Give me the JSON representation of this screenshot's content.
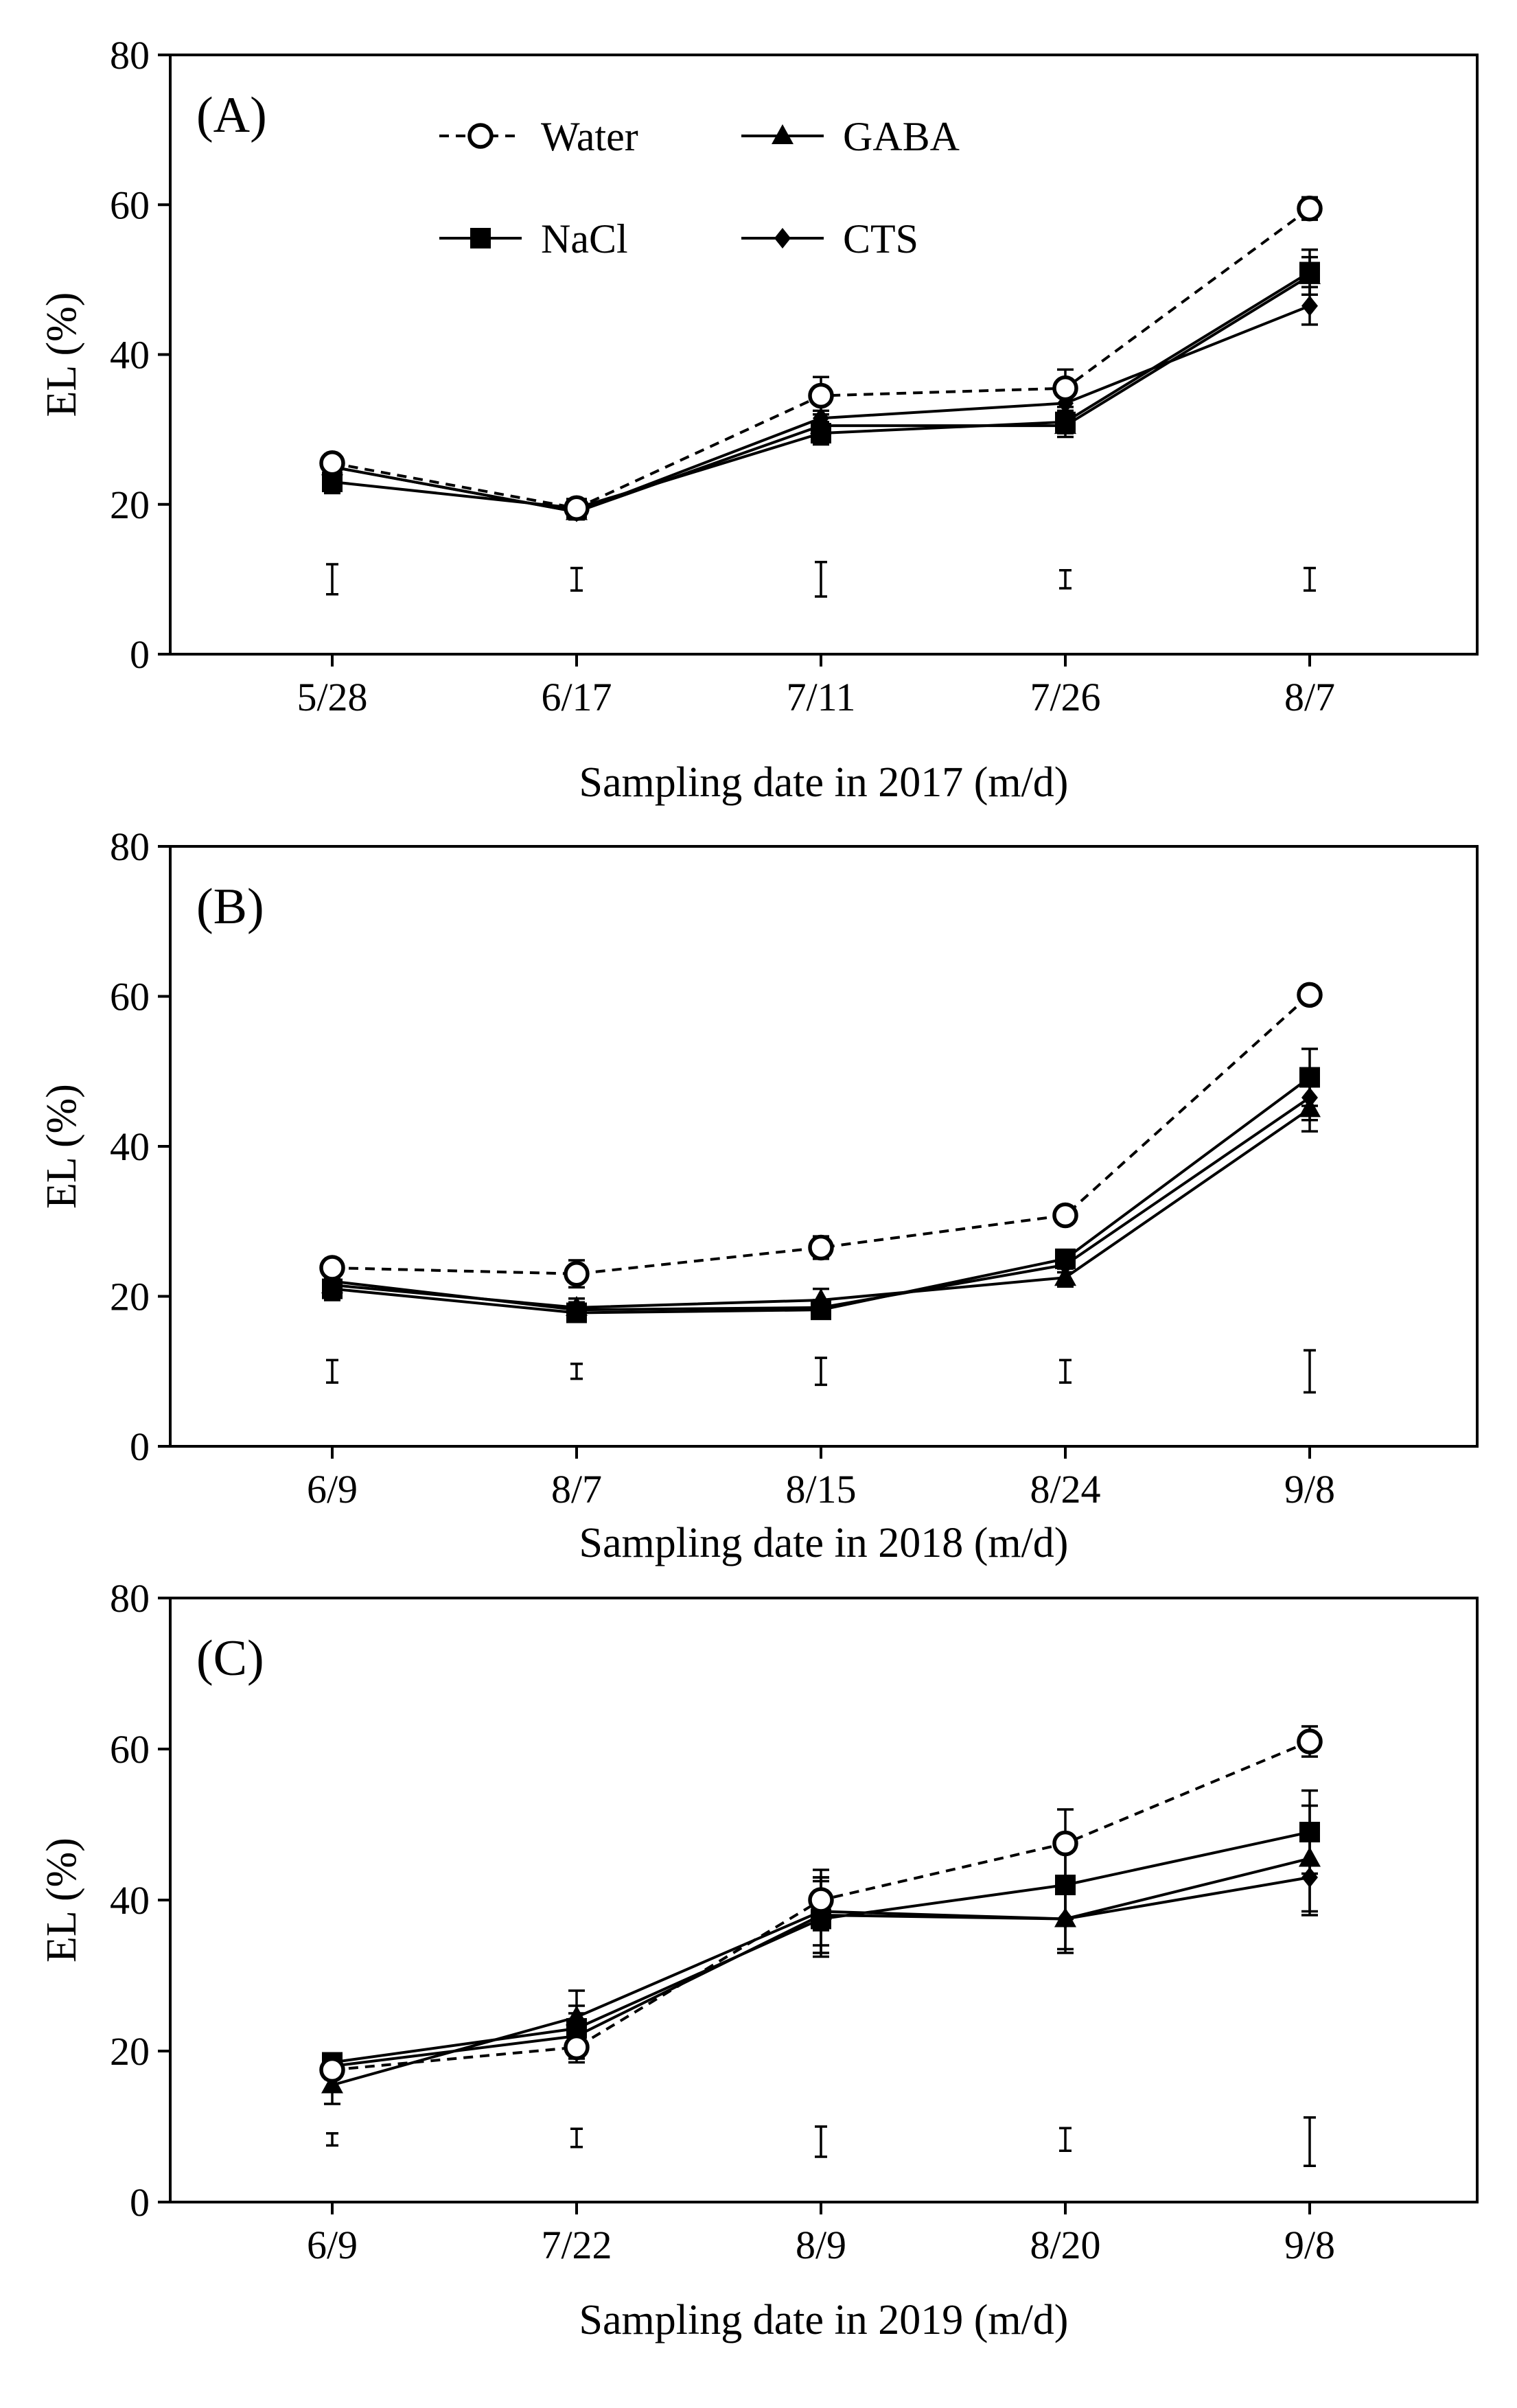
{
  "legend": [
    {
      "name": "Water",
      "marker": "open-circle",
      "dashed": true
    },
    {
      "name": "GABA",
      "marker": "triangle",
      "dashed": false
    },
    {
      "name": "NaCl",
      "marker": "square",
      "dashed": false
    },
    {
      "name": "CTS",
      "marker": "diamond",
      "dashed": false
    }
  ],
  "chart_data": [
    {
      "type": "line",
      "panel_label": "(A)",
      "xlabel": "Sampling date in 2017 (m/d)",
      "ylabel": "EL (%)",
      "ylim": [
        0,
        80
      ],
      "yticks": [
        "0",
        "20",
        "40",
        "60",
        "80"
      ],
      "categories": [
        "5/28",
        "6/17",
        "7/11",
        "7/26",
        "8/7"
      ],
      "series": [
        {
          "name": "Water",
          "values": [
            25.5,
            19.5,
            34.5,
            35.5,
            59.5
          ],
          "err": [
            1.2,
            1.0,
            2.5,
            2.5,
            1.5
          ]
        },
        {
          "name": "GABA",
          "values": [
            25.0,
            19.0,
            30.5,
            30.5,
            50.5
          ],
          "err": [
            1.2,
            1.0,
            2.0,
            1.5,
            2.5
          ]
        },
        {
          "name": "NaCl",
          "values": [
            23.0,
            19.5,
            29.5,
            31.0,
            51.0
          ],
          "err": [
            1.5,
            1.0,
            1.5,
            1.5,
            3.0
          ]
        },
        {
          "name": "CTS",
          "values": [
            25.0,
            19.0,
            31.5,
            33.5,
            46.5
          ],
          "err": [
            1.2,
            1.0,
            2.0,
            2.0,
            2.5
          ]
        }
      ],
      "lsd": [
        {
          "center": 10.0,
          "half": 2.0
        },
        {
          "center": 10.0,
          "half": 1.5
        },
        {
          "center": 10.0,
          "half": 2.3
        },
        {
          "center": 10.0,
          "half": 1.2
        },
        {
          "center": 10.0,
          "half": 1.5
        }
      ]
    },
    {
      "type": "line",
      "panel_label": "(B)",
      "xlabel": "Sampling date in 2018 (m/d)",
      "ylabel": "EL (%)",
      "ylim": [
        0,
        80
      ],
      "yticks": [
        "0",
        "20",
        "40",
        "60",
        "80"
      ],
      "categories": [
        "6/9",
        "8/7",
        "8/15",
        "8/24",
        "9/8"
      ],
      "series": [
        {
          "name": "Water",
          "values": [
            23.8,
            23.0,
            26.5,
            30.8,
            60.2
          ],
          "err": [
            1.0,
            1.8,
            1.5,
            0.8,
            1.2
          ]
        },
        {
          "name": "GABA",
          "values": [
            21.5,
            18.5,
            19.5,
            22.5,
            45.0
          ],
          "err": [
            1.5,
            1.2,
            1.5,
            1.2,
            3.0
          ]
        },
        {
          "name": "NaCl",
          "values": [
            21.0,
            17.8,
            18.2,
            25.0,
            49.2
          ],
          "err": [
            1.5,
            1.2,
            1.0,
            1.0,
            3.8
          ]
        },
        {
          "name": "CTS",
          "values": [
            22.0,
            18.2,
            18.5,
            24.2,
            46.5
          ],
          "err": [
            1.5,
            1.0,
            1.0,
            1.0,
            3.0
          ]
        }
      ],
      "lsd": [
        {
          "center": 10.0,
          "half": 1.5
        },
        {
          "center": 10.0,
          "half": 1.0
        },
        {
          "center": 10.0,
          "half": 1.8
        },
        {
          "center": 10.0,
          "half": 1.5
        },
        {
          "center": 10.0,
          "half": 2.8
        }
      ]
    },
    {
      "type": "line",
      "panel_label": "(C)",
      "xlabel": "Sampling date in 2019 (m/d)",
      "ylabel": "EL (%)",
      "ylim": [
        0,
        80
      ],
      "yticks": [
        "0",
        "20",
        "40",
        "60",
        "80"
      ],
      "categories": [
        "6/9",
        "7/22",
        "8/9",
        "8/20",
        "9/8"
      ],
      "series": [
        {
          "name": "Water",
          "values": [
            17.5,
            20.5,
            40.0,
            47.5,
            61.0
          ],
          "err": [
            1.2,
            2.0,
            4.0,
            4.5,
            2.0
          ]
        },
        {
          "name": "GABA",
          "values": [
            15.5,
            24.5,
            38.5,
            37.5,
            45.5
          ],
          "err": [
            2.5,
            3.5,
            4.5,
            4.5,
            7.0
          ]
        },
        {
          "name": "NaCl",
          "values": [
            18.5,
            23.0,
            37.5,
            42.0,
            49.0
          ],
          "err": [
            1.2,
            3.0,
            5.0,
            4.5,
            5.5
          ]
        },
        {
          "name": "CTS",
          "values": [
            18.0,
            22.0,
            38.0,
            37.5,
            43.0
          ],
          "err": [
            1.5,
            3.0,
            5.0,
            4.0,
            5.0
          ]
        }
      ],
      "lsd": [
        {
          "center": 8.3,
          "half": 0.8
        },
        {
          "center": 8.5,
          "half": 1.2
        },
        {
          "center": 8.0,
          "half": 2.0
        },
        {
          "center": 8.3,
          "half": 1.5
        },
        {
          "center": 8.0,
          "half": 3.2
        }
      ]
    }
  ]
}
